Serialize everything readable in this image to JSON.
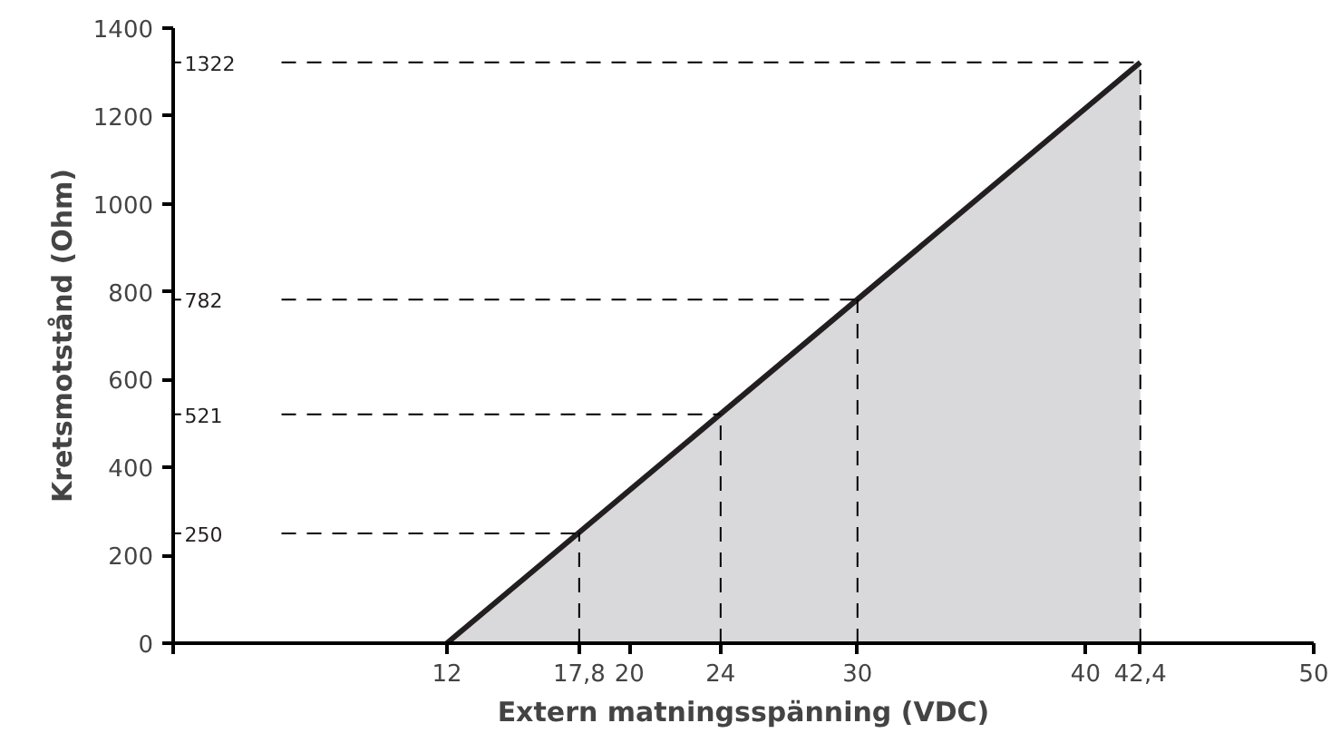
{
  "chart_data": {
    "type": "area",
    "xlabel": "Extern matningsspänning (VDC)",
    "ylabel": "Kretsmotstånd (Ohm)",
    "series": [
      {
        "color": "#d9d9db",
        "x": [
          12,
          42.4
        ],
        "values": [
          0,
          1322
        ]
      }
    ],
    "xlim": [
      0,
      50
    ],
    "ylim": [
      0,
      1400
    ],
    "xticks": [
      {
        "value": 0,
        "label": null
      },
      12,
      {
        "value": 17.8,
        "label": "17,8"
      },
      20,
      24,
      30,
      40,
      {
        "value": 42.4,
        "label": "42,4"
      },
      50
    ],
    "yticks": [
      0,
      200,
      400,
      600,
      800,
      1000,
      1200,
      1400
    ],
    "ref_lines": [
      {
        "axis": "y",
        "value": 250,
        "label": "250",
        "color": "#000000",
        "line_style": "dashed"
      },
      {
        "axis": "y",
        "value": 521,
        "label": "521",
        "color": "#000000",
        "line_style": "dashed"
      },
      {
        "axis": "y",
        "value": 782,
        "label": "782",
        "color": "#000000",
        "line_style": "dashed"
      },
      {
        "axis": "y",
        "value": 1322,
        "label": "1322",
        "color": "#000000",
        "line_style": "dashed"
      },
      {
        "axis": "x",
        "value": 17.8,
        "color": "#000000",
        "line_style": "dashed"
      },
      {
        "axis": "x",
        "value": 24,
        "color": "#000000",
        "line_style": "dashed"
      },
      {
        "axis": "x",
        "value": 30,
        "color": "#000000",
        "line_style": "dashed"
      },
      {
        "axis": "x",
        "value": 42.4,
        "color": "#000000",
        "line_style": "dashed"
      }
    ],
    "grid": false
  }
}
